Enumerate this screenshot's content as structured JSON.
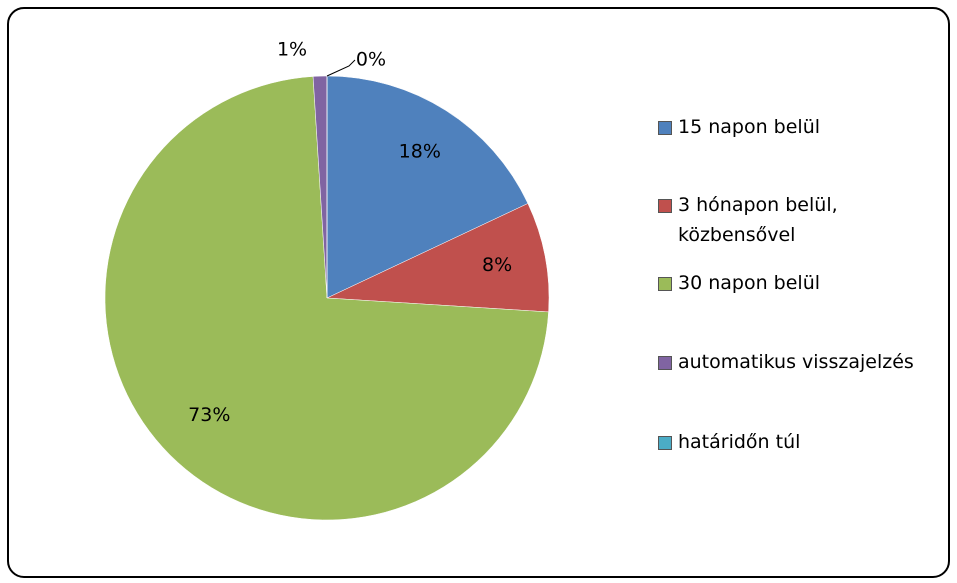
{
  "chart_data": {
    "type": "pie",
    "categories": [
      "15 napon belül",
      "3 hónapon belül, közbensővel",
      "30 napon belül",
      "automatikus visszajelzés",
      "határidőn túl"
    ],
    "values": [
      18,
      8,
      73,
      1,
      0
    ],
    "value_labels": [
      "18%",
      "8%",
      "73%",
      "1%",
      "0%"
    ],
    "colors": [
      "#4f81bd",
      "#c0504d",
      "#9bbb59",
      "#8064a2",
      "#4bacc6"
    ],
    "legend": "right"
  }
}
